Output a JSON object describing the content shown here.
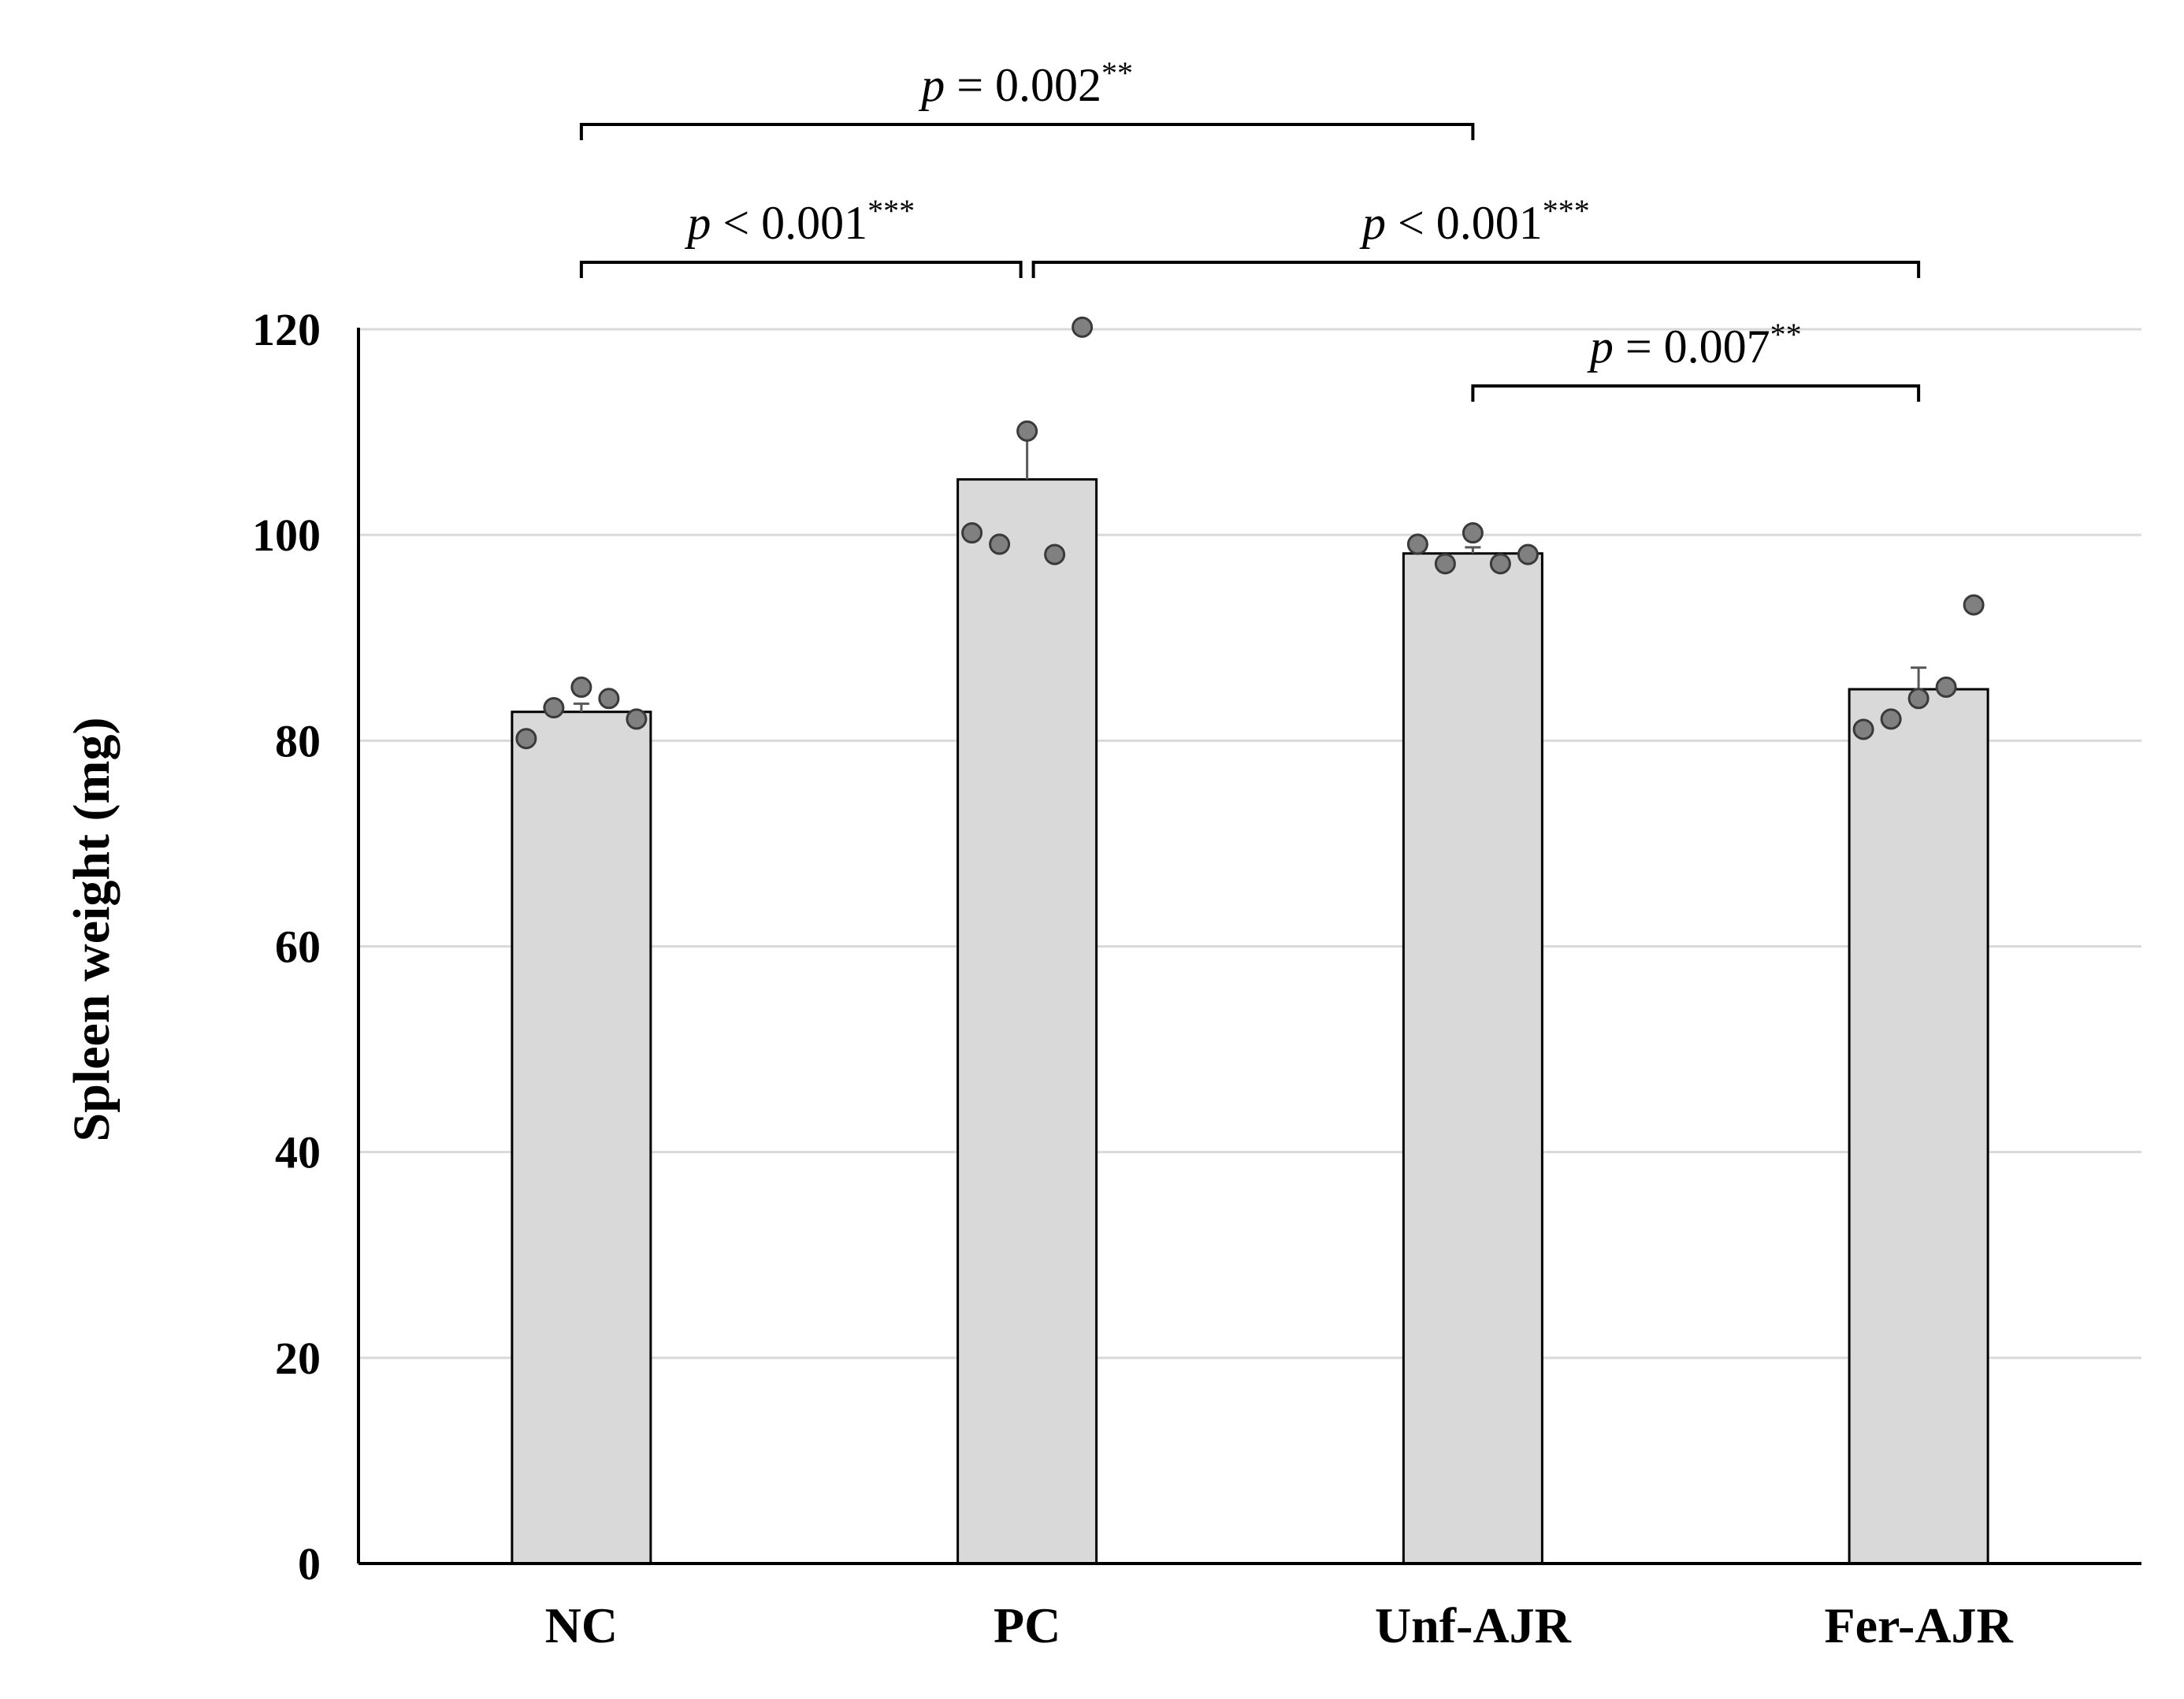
{
  "chart_data": {
    "type": "bar",
    "ylabel": "Spleen weight (mg)",
    "xlabel": "",
    "ylim": [
      0,
      120
    ],
    "yticks": [
      0,
      20,
      40,
      60,
      80,
      100,
      120
    ],
    "grid": true,
    "categories": [
      "NC",
      "PC",
      "Unf-AJR",
      "Fer-AJR"
    ],
    "values": [
      82.8,
      105.4,
      98.2,
      85.0
    ],
    "errors": [
      0.8,
      4.4,
      0.6,
      2.1
    ],
    "points": [
      [
        80.2,
        83.2,
        85.2,
        84.1,
        82.1
      ],
      [
        100.2,
        99.1,
        110.1,
        98.1,
        120.2
      ],
      [
        99.1,
        97.2,
        100.2,
        97.2,
        98.1
      ],
      [
        81.1,
        82.1,
        84.1,
        85.2,
        93.2
      ]
    ],
    "comparisons": [
      {
        "groups": [
          "NC",
          "Unf-AJR"
        ],
        "p_symbol": "p",
        "text": " = 0.002",
        "stars": "**"
      },
      {
        "groups": [
          "NC",
          "PC"
        ],
        "p_symbol": "p",
        "text": " < 0.001",
        "stars": "***"
      },
      {
        "groups": [
          "PC",
          "Fer-AJR"
        ],
        "p_symbol": "p",
        "text": " < 0.001",
        "stars": "***"
      },
      {
        "groups": [
          "Unf-AJR",
          "Fer-AJR"
        ],
        "p_symbol": "p",
        "text": " = 0.007",
        "stars": "**"
      }
    ],
    "colors": {
      "bar": "#d9d9d9",
      "point": "#808080",
      "grid": "#d9d9d9",
      "axis": "#000000"
    }
  }
}
